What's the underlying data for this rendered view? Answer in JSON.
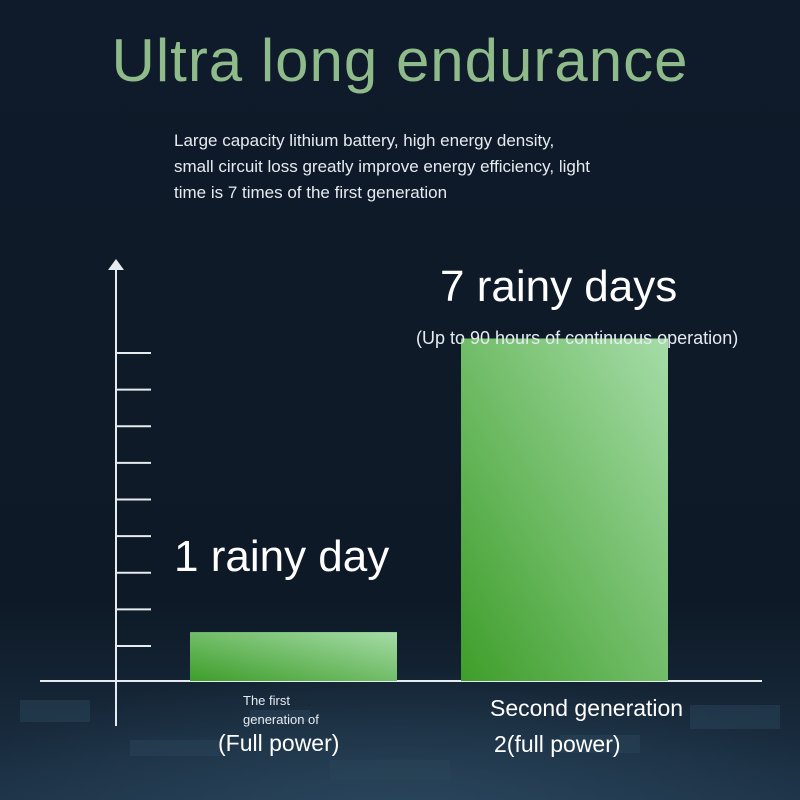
{
  "title": "Ultra long endurance",
  "description_lines": [
    "Large capacity lithium battery, high energy density,",
    "small circuit loss greatly improve energy efficiency, light",
    "time is 7 times of the first generation"
  ],
  "colors": {
    "background": "#0e1a29",
    "title": "#8fba8a",
    "bar_start": "#3e9e2a",
    "bar_end": "#a6dca8"
  },
  "chart_data": {
    "type": "bar",
    "categories": [
      "The first generation of (Full power)",
      "Second generation 2(full power)"
    ],
    "values": [
      1,
      7
    ],
    "value_labels": [
      "1 rainy day",
      "7 rainy days"
    ],
    "value_note": "(Up to 90 hours of continuous operation)",
    "category_lines": [
      {
        "small": [
          "The first",
          "generation of"
        ],
        "big": "(Full power)"
      },
      {
        "big": [
          "Second generation",
          "2(full power)"
        ]
      }
    ],
    "ylim": [
      0,
      8.4
    ],
    "ytick_count": 9,
    "grid": false
  }
}
